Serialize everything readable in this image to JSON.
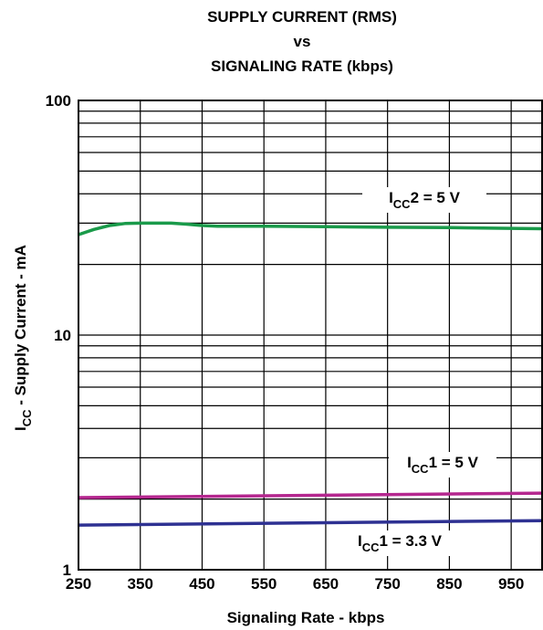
{
  "chart_data": {
    "type": "line",
    "title": [
      "SUPPLY CURRENT (RMS)",
      "vs",
      "SIGNALING RATE (kbps)"
    ],
    "xlabel": "Signaling Rate - kbps",
    "ylabel": {
      "main": "I",
      "sub": "CC",
      "rest": " - Supply Current - mA"
    },
    "xlim": [
      250,
      1000
    ],
    "ylim": [
      1,
      100
    ],
    "yscale": "log",
    "grid": true,
    "x_ticks": [
      250,
      350,
      450,
      550,
      650,
      750,
      850,
      950
    ],
    "y_ticks": [
      1,
      10,
      100
    ],
    "series": [
      {
        "name": {
          "main": "I",
          "sub": "CC",
          "rest": "2 = 5 V"
        },
        "color": "#1a9a4a",
        "x": [
          250,
          275,
          300,
          325,
          350,
          400,
          425,
          450,
          475,
          550,
          650,
          750,
          850,
          950,
          1000
        ],
        "y": [
          26.8,
          28.2,
          29.3,
          29.9,
          30.0,
          30.0,
          29.7,
          29.3,
          29.1,
          29.1,
          29.0,
          28.8,
          28.7,
          28.5,
          28.4
        ]
      },
      {
        "name": {
          "main": "I",
          "sub": "CC",
          "rest": "1 = 5 V"
        },
        "color": "#b5278f",
        "x": [
          250,
          1000
        ],
        "y": [
          2.03,
          2.12
        ]
      },
      {
        "name": {
          "main": "I",
          "sub": "CC",
          "rest": "1 = 3.3 V"
        },
        "color": "#2e3192",
        "x": [
          250,
          1000
        ],
        "y": [
          1.55,
          1.62
        ]
      }
    ]
  }
}
